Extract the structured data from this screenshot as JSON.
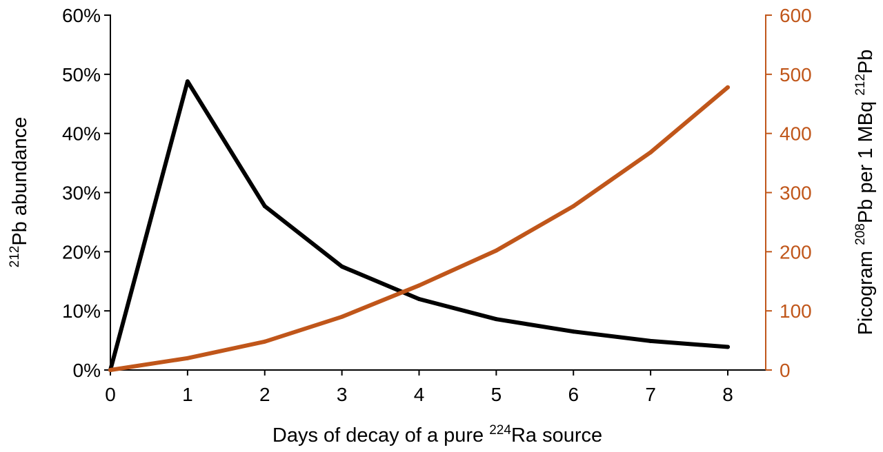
{
  "chart_data": {
    "type": "line",
    "x": [
      0,
      1,
      2,
      3,
      4,
      5,
      6,
      7,
      8
    ],
    "series": [
      {
        "axis": "left",
        "color": "#000000",
        "values": [
          0,
          48.8,
          27.7,
          17.5,
          12.0,
          8.6,
          6.5,
          4.9,
          3.9
        ]
      },
      {
        "axis": "right",
        "color": "#C0561A",
        "values": [
          0,
          20,
          48,
          90,
          143,
          202,
          277,
          368,
          478
        ]
      }
    ],
    "xlabel": {
      "prefix": "Days of decay of a pure ",
      "sup": "224",
      "suffix": "Ra source"
    },
    "ylabel_left": {
      "sup": "212",
      "text": "Pb abundance"
    },
    "ylabel_right": {
      "prefix": "Picogram ",
      "sup1": "208",
      "middle": "Pb per 1 MBq ",
      "sup2": "212",
      "suffix": "Pb"
    },
    "xlim": [
      0,
      8
    ],
    "ylim_left": [
      0,
      60
    ],
    "ylim_right": [
      0,
      600
    ],
    "x_ticks": [
      "0",
      "1",
      "2",
      "3",
      "4",
      "5",
      "6",
      "7",
      "8"
    ],
    "y_left_ticks": [
      "0%",
      "10%",
      "20%",
      "30%",
      "40%",
      "50%",
      "60%"
    ],
    "y_right_ticks": [
      "0",
      "100",
      "200",
      "300",
      "400",
      "500",
      "600"
    ],
    "grid": false,
    "right_axis_color": "#C0561A"
  }
}
